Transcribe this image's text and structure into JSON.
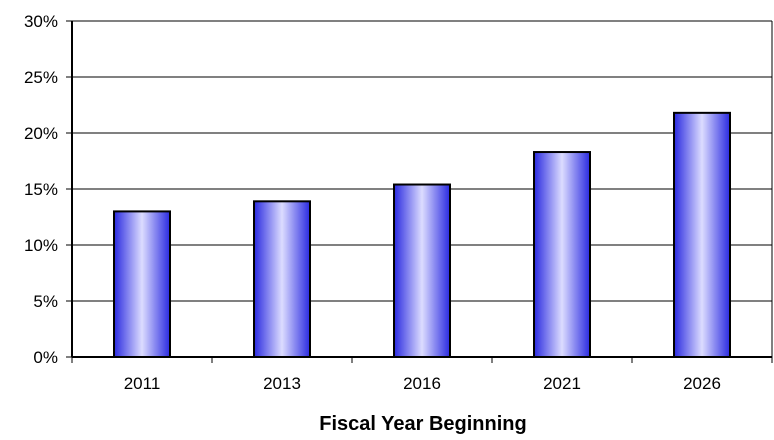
{
  "chart_data": {
    "type": "bar",
    "title": "",
    "xlabel": "Fiscal Year Beginning",
    "ylabel": "",
    "categories": [
      "2011",
      "2013",
      "2016",
      "2021",
      "2026"
    ],
    "values": [
      13.0,
      13.9,
      15.4,
      18.3,
      21.8
    ],
    "value_unit": "%",
    "ylim": [
      0,
      30
    ],
    "yticks": [
      0,
      5,
      10,
      15,
      20,
      25,
      30
    ],
    "ytick_labels": [
      "0%",
      "5%",
      "10%",
      "15%",
      "20%",
      "25%",
      "30%"
    ],
    "grid": true,
    "legend": "none",
    "colors": {
      "bar_edge": "#2a2ae0",
      "bar_center": "#dcdcff",
      "bar_stroke": "#000000",
      "grid": "#000000",
      "axis": "#000000"
    }
  }
}
